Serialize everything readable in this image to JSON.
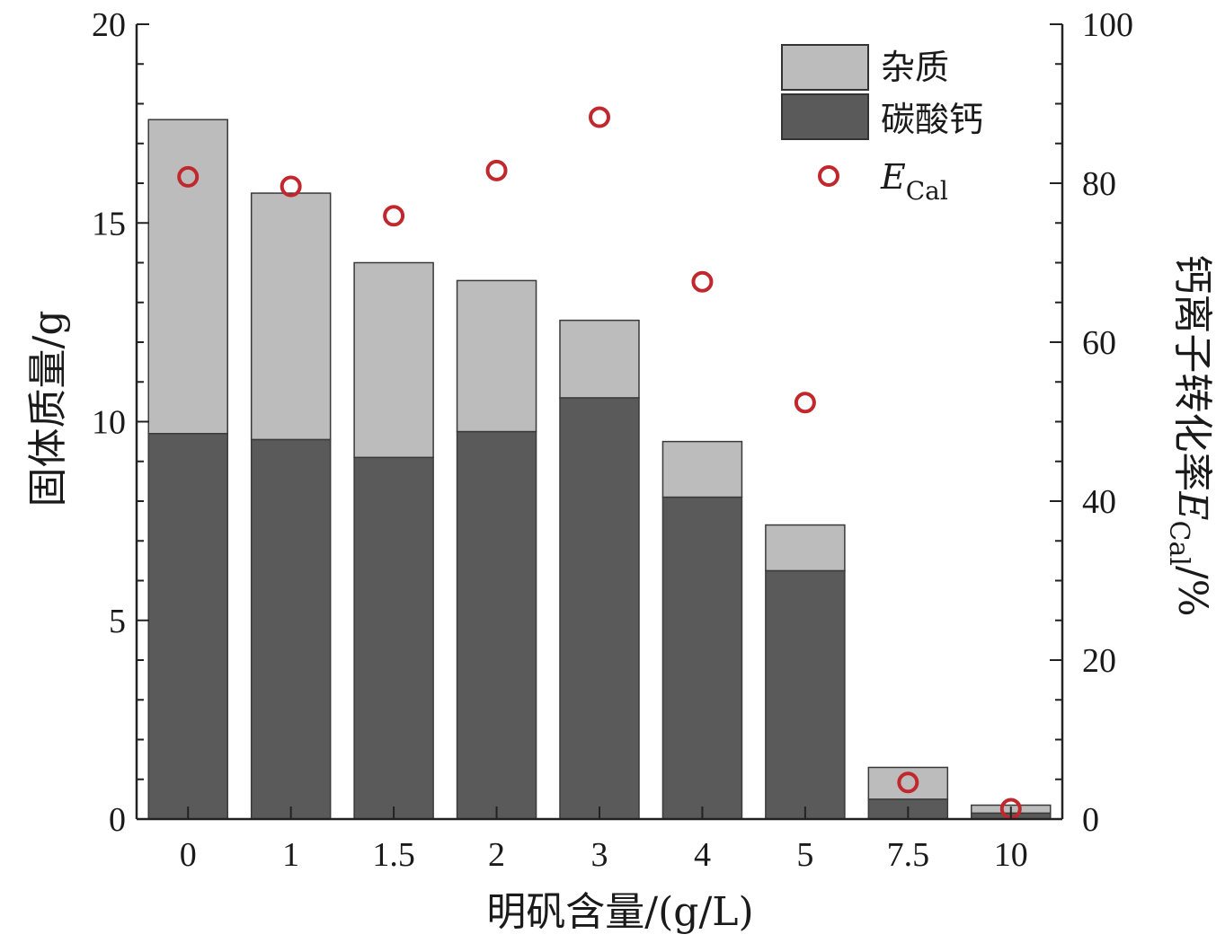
{
  "chart_data": {
    "type": "bar",
    "stacked": true,
    "categories": [
      "0",
      "1",
      "1.5",
      "2",
      "3",
      "4",
      "5",
      "7.5",
      "10"
    ],
    "xlabel": "明矾含量/(g/L)",
    "ylabel_left": "固体质量/g",
    "ylabel_right": {
      "prefix": "钙离子转化率",
      "var": "E",
      "sub": "Cal",
      "suffix": "/%"
    },
    "ylim_left": [
      0,
      20
    ],
    "ylim_right": [
      0,
      100
    ],
    "yticks_left": [
      0,
      5,
      10,
      15,
      20
    ],
    "yticks_right": [
      0,
      20,
      40,
      60,
      80,
      100
    ],
    "series": [
      {
        "name": "碳酸钙",
        "axis": "left",
        "type": "bar",
        "color": "#5a5a5a",
        "values": [
          9.7,
          9.55,
          9.1,
          9.75,
          10.6,
          8.1,
          6.25,
          0.5,
          0.15
        ]
      },
      {
        "name": "杂质",
        "axis": "left",
        "type": "bar",
        "color": "#bcbcbc",
        "values": [
          7.9,
          6.2,
          4.9,
          3.8,
          1.95,
          1.4,
          1.15,
          0.8,
          0.2
        ]
      },
      {
        "name_var": "E",
        "name_sub": "Cal",
        "axis": "right",
        "type": "scatter",
        "color": "#c0282d",
        "values": [
          80.8,
          79.6,
          75.9,
          81.6,
          88.3,
          67.6,
          52.4,
          4.6,
          1.3
        ]
      }
    ],
    "legend": {
      "position": "top-right",
      "items": [
        {
          "label": "杂质",
          "kind": "bar",
          "color": "#bcbcbc"
        },
        {
          "label": "碳酸钙",
          "kind": "bar",
          "color": "#5a5a5a"
        },
        {
          "label_var": "E",
          "label_sub": "Cal",
          "kind": "marker",
          "color": "#c0282d"
        }
      ]
    }
  }
}
